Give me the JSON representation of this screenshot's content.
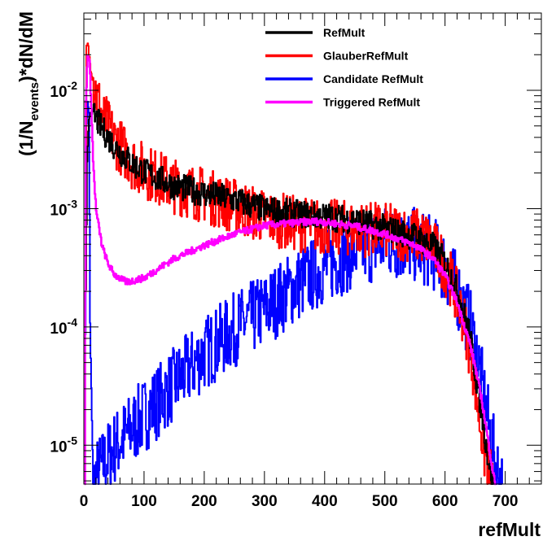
{
  "chart_data": {
    "type": "line",
    "title": "",
    "xlabel": "refMult",
    "ylabel": {
      "prefix": "(1/N",
      "subscript": "events",
      "suffix": ")*dN/dM"
    },
    "xlim": [
      0,
      760
    ],
    "ylim": [
      4.7e-06,
      0.045
    ],
    "yscale": "log",
    "x_ticks": [
      0,
      100,
      200,
      300,
      400,
      500,
      600,
      700
    ],
    "x_tick_labels": [
      "0",
      "100",
      "200",
      "300",
      "400",
      "500",
      "600",
      "700"
    ],
    "y_ticks": [
      {
        "value": 1e-05,
        "base": "10",
        "exp": "-5"
      },
      {
        "value": 0.0001,
        "base": "10",
        "exp": "-4"
      },
      {
        "value": 0.001,
        "base": "10",
        "exp": "-3"
      },
      {
        "value": 0.01,
        "base": "10",
        "exp": "-2"
      }
    ],
    "grid": false,
    "legend_position": "top-right",
    "series": [
      {
        "name": "RefMult",
        "color": "#000000",
        "noise": 0.12,
        "points": [
          [
            3,
            0.0002
          ],
          [
            5,
            0.0024
          ],
          [
            8,
            0.0058
          ],
          [
            12,
            0.0068
          ],
          [
            20,
            0.0057
          ],
          [
            30,
            0.0047
          ],
          [
            50,
            0.0034
          ],
          [
            80,
            0.0024
          ],
          [
            100,
            0.00205
          ],
          [
            150,
            0.00155
          ],
          [
            200,
            0.00135
          ],
          [
            250,
            0.00118
          ],
          [
            300,
            0.00098
          ],
          [
            350,
            0.00091
          ],
          [
            400,
            0.00086
          ],
          [
            450,
            0.0008
          ],
          [
            500,
            0.00068
          ],
          [
            550,
            0.00058
          ],
          [
            580,
            0.00048
          ],
          [
            600,
            0.00035
          ],
          [
            620,
            0.0002
          ],
          [
            640,
            9e-05
          ],
          [
            650,
            4e-05
          ],
          [
            660,
            2e-05
          ],
          [
            670,
            8.5e-06
          ],
          [
            680,
            4.5e-06
          ]
        ]
      },
      {
        "name": "GlauberRefMult",
        "color": "#ff0000",
        "noise": 0.24,
        "points": [
          [
            2,
            0.0003
          ],
          [
            4,
            0.022
          ],
          [
            6,
            0.024
          ],
          [
            10,
            0.017
          ],
          [
            20,
            0.0095
          ],
          [
            30,
            0.0061
          ],
          [
            50,
            0.0039
          ],
          [
            80,
            0.0025
          ],
          [
            100,
            0.0021
          ],
          [
            150,
            0.00155
          ],
          [
            200,
            0.0013
          ],
          [
            250,
            0.00105
          ],
          [
            300,
            0.00085
          ],
          [
            350,
            0.00075
          ],
          [
            400,
            0.0007
          ],
          [
            450,
            0.00068
          ],
          [
            500,
            0.00065
          ],
          [
            550,
            0.0006
          ],
          [
            570,
            0.00055
          ],
          [
            590,
            0.0004
          ],
          [
            610,
            0.00025
          ],
          [
            630,
            0.00012
          ],
          [
            645,
            5e-05
          ],
          [
            655,
            2e-05
          ],
          [
            665,
            8.5e-06
          ],
          [
            680,
            4.5e-06
          ]
        ]
      },
      {
        "name": "Candidate RefMult",
        "color": "#0000ff",
        "noise": 0.32,
        "points": [
          [
            2,
            0.0001
          ],
          [
            4,
            0.0055
          ],
          [
            6,
            0.0075
          ],
          [
            8,
            0.0068
          ],
          [
            10,
            0.0001
          ],
          [
            15,
            4.5e-06
          ],
          [
            20,
            5.5e-06
          ],
          [
            50,
            9.5e-06
          ],
          [
            80,
            1.4e-05
          ],
          [
            100,
            1.8e-05
          ],
          [
            150,
            3.3e-05
          ],
          [
            200,
            6e-05
          ],
          [
            250,
            9.5e-05
          ],
          [
            300,
            0.00014
          ],
          [
            350,
            0.00022
          ],
          [
            400,
            0.00032
          ],
          [
            450,
            0.00044
          ],
          [
            500,
            0.00052
          ],
          [
            550,
            0.00049
          ],
          [
            580,
            0.00042
          ],
          [
            600,
            0.00032
          ],
          [
            620,
            0.0002
          ],
          [
            640,
            0.00011
          ],
          [
            655,
            5e-05
          ],
          [
            665,
            2.4e-05
          ],
          [
            675,
            1.2e-05
          ],
          [
            685,
            6.5e-06
          ],
          [
            695,
            4.5e-06
          ]
        ]
      },
      {
        "name": "Triggered RefMult",
        "color": "#ff00ff",
        "noise": 0.03,
        "points": [
          [
            1,
            4.5e-06
          ],
          [
            3,
            0.008
          ],
          [
            6,
            0.021
          ],
          [
            9,
            0.017
          ],
          [
            12,
            0.0075
          ],
          [
            15,
            0.0025
          ],
          [
            20,
            0.00095
          ],
          [
            30,
            0.00048
          ],
          [
            40,
            0.00034
          ],
          [
            50,
            0.00028
          ],
          [
            60,
            0.000255
          ],
          [
            70,
            0.00024
          ],
          [
            80,
            0.000245
          ],
          [
            100,
            0.00026
          ],
          [
            150,
            0.00038
          ],
          [
            200,
            0.00049
          ],
          [
            250,
            0.00061
          ],
          [
            300,
            0.00072
          ],
          [
            350,
            0.00076
          ],
          [
            380,
            0.00078
          ],
          [
            400,
            0.00077
          ],
          [
            450,
            0.00071
          ],
          [
            500,
            0.00061
          ],
          [
            550,
            0.00049
          ],
          [
            580,
            0.00038
          ],
          [
            600,
            0.00027
          ],
          [
            620,
            0.00016
          ],
          [
            640,
            7.5e-05
          ],
          [
            650,
            4.5e-05
          ],
          [
            660,
            2.5e-05
          ],
          [
            670,
            1.2e-05
          ],
          [
            680,
            5.5e-06
          ],
          [
            685,
            4.5e-06
          ]
        ]
      }
    ]
  }
}
